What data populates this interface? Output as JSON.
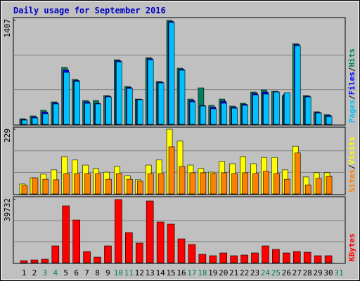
{
  "title": "Daily usage for September 2016",
  "legend_separator": "/",
  "chart_data": [
    {
      "type": "bar",
      "categories": [
        "1",
        "2",
        "3",
        "4",
        "5",
        "6",
        "7",
        "8",
        "9",
        "10",
        "11",
        "12",
        "13",
        "14",
        "15",
        "16",
        "17",
        "18",
        "19",
        "20",
        "21",
        "22",
        "23",
        "24",
        "25",
        "26",
        "27",
        "28",
        "29",
        "30",
        "31"
      ],
      "category_colors": [
        "#000000",
        "#000000",
        "#00805c",
        "#00805c",
        "#000000",
        "#000000",
        "#000000",
        "#000000",
        "#000000",
        "#00805c",
        "#00805c",
        "#000000",
        "#000000",
        "#000000",
        "#000000",
        "#000000",
        "#00805c",
        "#00805c",
        "#000000",
        "#000000",
        "#000000",
        "#000000",
        "#000000",
        "#00805c",
        "#00805c",
        "#000000",
        "#000000",
        "#000000",
        "#000000",
        "#000000",
        "#00805c"
      ],
      "series": [
        {
          "name": "Hits",
          "color": "#00805c",
          "values": [
            76,
            114,
            190,
            304,
            770,
            608,
            323,
            323,
            390,
            874,
            513,
            342,
            903,
            580,
            1407,
            760,
            342,
            494,
            257,
            342,
            247,
            285,
            437,
            466,
            447,
            390,
            1093,
            390,
            171,
            133,
            null
          ]
        },
        {
          "name": "Files",
          "color": "#0000ff",
          "values": [
            66,
            100,
            166,
            290,
            736,
            594,
            304,
            285,
            380,
            860,
            499,
            338,
            888,
            570,
            1392,
            746,
            323,
            256,
            233,
            313,
            232,
            271,
            418,
            437,
            442,
            409,
            1078,
            380,
            161,
            119,
            null
          ]
        },
        {
          "name": "Pages",
          "color": "#00c0ff",
          "values": [
            57,
            86,
            143,
            276,
            703,
            580,
            285,
            276,
            371,
            846,
            485,
            333,
            874,
            561,
            1378,
            732,
            304,
            247,
            209,
            285,
            218,
            257,
            399,
            409,
            437,
            428,
            1064,
            371,
            152,
            105,
            null
          ]
        }
      ],
      "ylim": [
        0,
        1407
      ],
      "yticks": [
        1407
      ]
    },
    {
      "type": "bar",
      "series": [
        {
          "name": "Visits",
          "color": "#ffff00",
          "values": [
            35,
            57,
            70,
            85,
            132,
            120,
            102,
            90,
            77,
            97,
            65,
            50,
            102,
            120,
            229,
            187,
            102,
            90,
            77,
            115,
            107,
            132,
            107,
            129,
            129,
            85,
            169,
            60,
            75,
            75,
            null
          ]
        },
        {
          "name": "Sites",
          "color": "#ff8000",
          "values": [
            30,
            57,
            52,
            50,
            72,
            72,
            72,
            72,
            52,
            72,
            52,
            45,
            72,
            72,
            167,
            97,
            75,
            75,
            72,
            75,
            72,
            75,
            72,
            80,
            72,
            52,
            145,
            32,
            55,
            62,
            null
          ]
        }
      ],
      "ylim": [
        0,
        229
      ],
      "yticks": [
        229
      ]
    },
    {
      "type": "bar",
      "series": [
        {
          "name": "KBytes",
          "color": "#ff0000",
          "values": [
            1324,
            1766,
            2207,
            10597,
            35760,
            26900,
            7064,
            3532,
            10597,
            39732,
            18980,
            12360,
            38850,
            25600,
            24280,
            15000,
            11480,
            5300,
            4415,
            6180,
            4415,
            4856,
            6180,
            10597,
            8390,
            6180,
            7064,
            6620,
            4415,
            4415,
            null
          ]
        }
      ],
      "ylim": [
        0,
        39732
      ],
      "yticks": [
        39732
      ]
    }
  ]
}
